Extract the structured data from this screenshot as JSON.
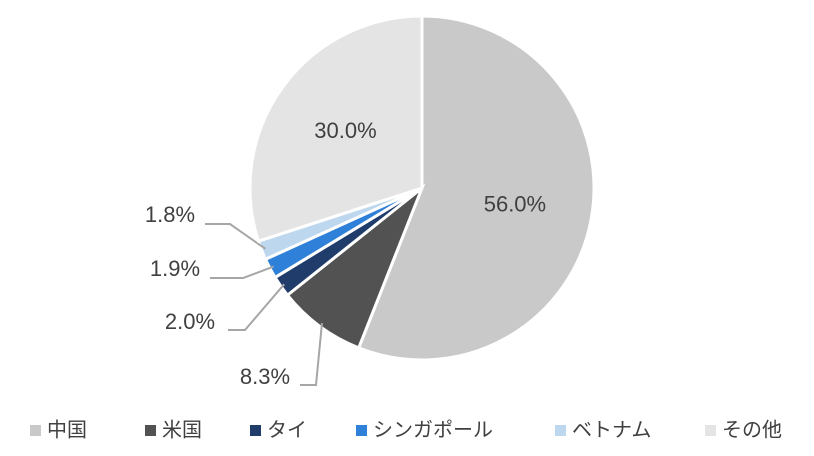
{
  "chart_data": {
    "type": "pie",
    "categories": [
      "中国",
      "米国",
      "タイ",
      "シンガポール",
      "ベトナム",
      "その他"
    ],
    "values": [
      56.0,
      8.3,
      2.0,
      1.9,
      1.8,
      30.0
    ],
    "value_labels": [
      "56.0%",
      "8.3%",
      "2.0%",
      "1.9%",
      "1.8%",
      "30.0%"
    ],
    "colors": [
      "#c9c9c9",
      "#525252",
      "#1f3c6b",
      "#2f80d8",
      "#bdd7ee",
      "#e4e4e4"
    ],
    "legend": "bottom"
  }
}
